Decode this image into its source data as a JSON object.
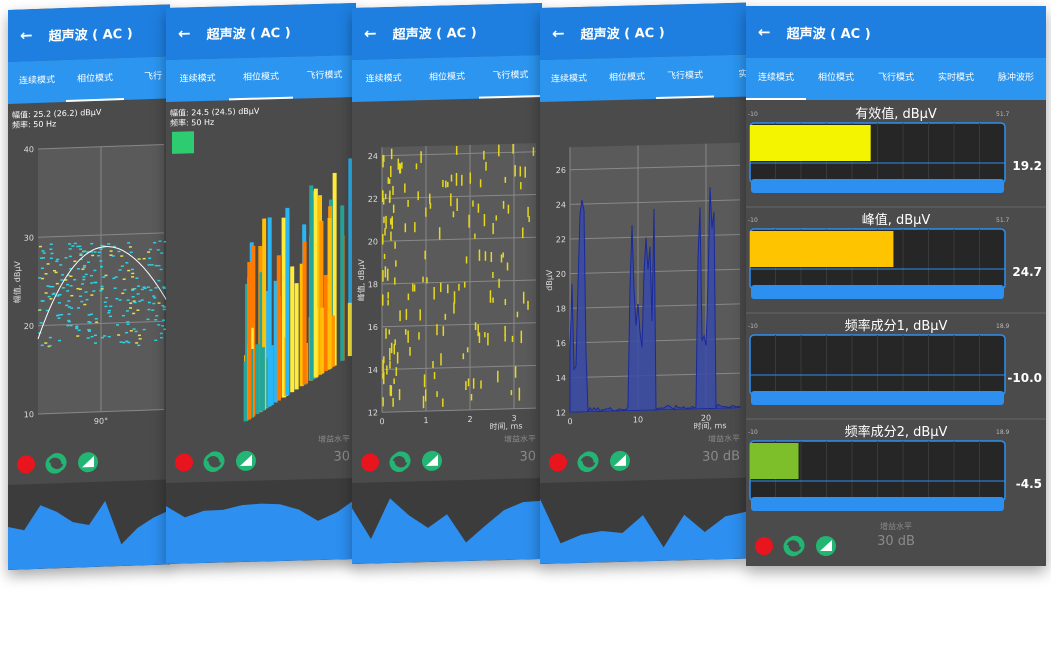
{
  "screens": [
    {
      "title": "超声波 ( AC )",
      "tabs": [
        "连续模式",
        "相位模式",
        "飞行"
      ],
      "active": 1,
      "info": [
        "幅值: 25.2 (26.2) dBμV",
        "频率:   50 Hz"
      ],
      "y_label": "幅值, dBμV",
      "yticks": [
        10,
        20,
        30,
        40
      ],
      "xticks": [
        "90°"
      ]
    },
    {
      "title": "超声波 ( AC )",
      "tabs": [
        "连续模式",
        "相位模式",
        "飞行模式"
      ],
      "active": 1,
      "info": [
        "幅值: 24.5 (24.5) dBμV",
        "频率:   50 Hz"
      ],
      "gain_label": "增益水平",
      "gain_value": "30"
    },
    {
      "title": "超声波 ( AC )",
      "tabs": [
        "连续模式",
        "相位模式",
        "飞行模式"
      ],
      "active": 2,
      "y_label": "峰值, dBμV",
      "x_label": "时间, ms",
      "yticks": [
        12,
        14,
        16,
        18,
        20,
        22,
        24
      ],
      "xticks": [
        0,
        1,
        2,
        3
      ],
      "gain_label": "增益水平",
      "gain_value": "30"
    },
    {
      "title": "超声波 ( AC )",
      "tabs": [
        "连续模式",
        "相位模式",
        "飞行模式",
        "实"
      ],
      "active": 2,
      "y_label": "dBμV",
      "x_label": "时间, ms",
      "yticks": [
        12,
        14,
        16,
        18,
        20,
        22,
        24,
        26
      ],
      "xticks": [
        0,
        10,
        20
      ],
      "gain_label": "增益水平",
      "gain_value": "30 dB"
    },
    {
      "title": "超声波 ( AC )",
      "tabs": [
        "连续模式",
        "相位模式",
        "飞行模式",
        "实时模式",
        "脉冲波形"
      ],
      "active": 0,
      "gain_label": "增益水平",
      "gain_value": "30 dB",
      "meters": [
        {
          "label": "有效值, dBμV",
          "min": -10,
          "max": 51.7,
          "value": 19.2,
          "color": "#f4f400"
        },
        {
          "label": "峰值, dBμV",
          "min": -10,
          "max": 51.7,
          "value": 24.7,
          "color": "#ffc400"
        },
        {
          "label": "频率成分1, dBμV",
          "min": -10,
          "max": 18.9,
          "value": -10,
          "value_label": "-10.0",
          "color": "#7cbf2a"
        },
        {
          "label": "频率成分2, dBμV",
          "min": -10,
          "max": 18.9,
          "value": -4.5,
          "color": "#7cbf2a"
        }
      ]
    }
  ]
}
